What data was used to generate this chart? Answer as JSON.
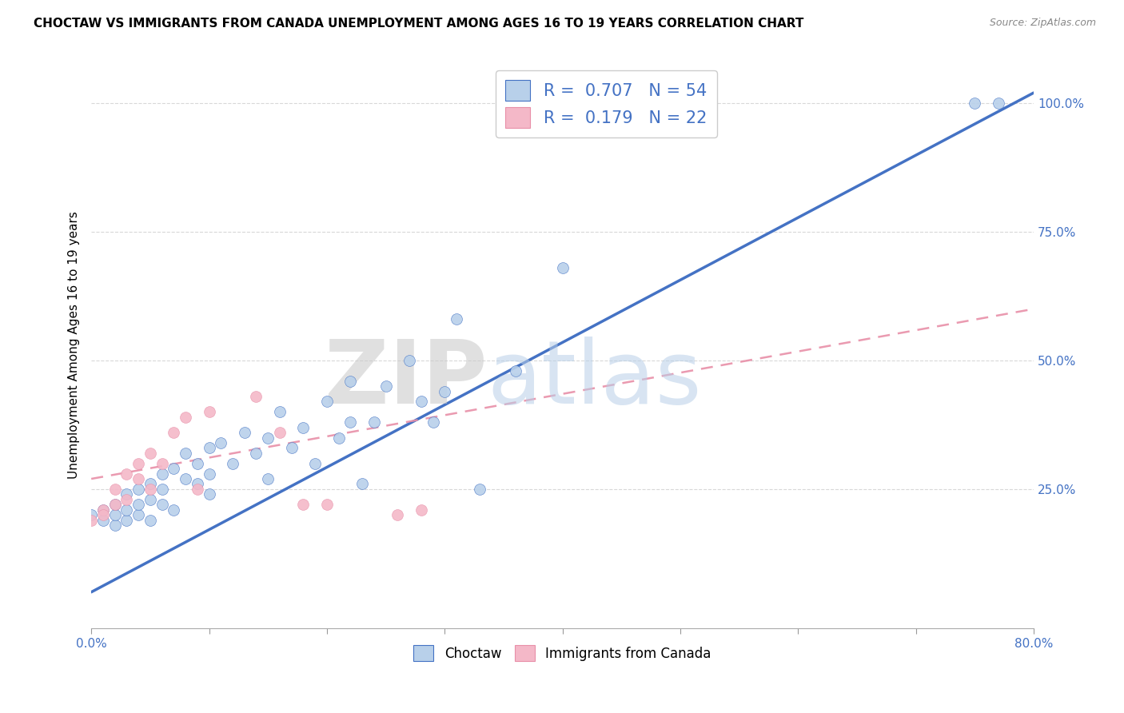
{
  "title": "CHOCTAW VS IMMIGRANTS FROM CANADA UNEMPLOYMENT AMONG AGES 16 TO 19 YEARS CORRELATION CHART",
  "source": "Source: ZipAtlas.com",
  "ylabel": "Unemployment Among Ages 16 to 19 years",
  "xlim": [
    0.0,
    0.8
  ],
  "ylim": [
    -0.02,
    1.08
  ],
  "xticks": [
    0.0,
    0.1,
    0.2,
    0.3,
    0.4,
    0.5,
    0.6,
    0.7,
    0.8
  ],
  "xticklabels": [
    "0.0%",
    "",
    "",
    "",
    "",
    "",
    "",
    "",
    "80.0%"
  ],
  "ytick_positions": [
    0.25,
    0.5,
    0.75,
    1.0
  ],
  "ytick_labels": [
    "25.0%",
    "50.0%",
    "75.0%",
    "100.0%"
  ],
  "choctaw_color": "#b8d0ea",
  "canada_color": "#f4b8c8",
  "choctaw_line_color": "#4472c4",
  "canada_line_color": "#e88fa8",
  "R_choctaw": 0.707,
  "N_choctaw": 54,
  "R_canada": 0.179,
  "N_canada": 22,
  "legend_label_choctaw": "Choctaw",
  "legend_label_canada": "Immigrants from Canada",
  "text_color": "#4472c4",
  "watermark_zip": "ZIP",
  "watermark_atlas": "atlas",
  "background_color": "#ffffff",
  "grid_color": "#d8d8d8",
  "choctaw_line_x0": 0.0,
  "choctaw_line_y0": 0.05,
  "choctaw_line_x1": 0.8,
  "choctaw_line_y1": 1.02,
  "canada_line_x0": 0.0,
  "canada_line_y0": 0.27,
  "canada_line_x1": 0.8,
  "canada_line_y1": 0.6,
  "choctaw_x": [
    0.0,
    0.01,
    0.01,
    0.02,
    0.02,
    0.02,
    0.03,
    0.03,
    0.03,
    0.04,
    0.04,
    0.04,
    0.05,
    0.05,
    0.05,
    0.06,
    0.06,
    0.06,
    0.07,
    0.07,
    0.08,
    0.08,
    0.09,
    0.09,
    0.1,
    0.1,
    0.1,
    0.11,
    0.12,
    0.13,
    0.14,
    0.15,
    0.15,
    0.16,
    0.17,
    0.18,
    0.19,
    0.2,
    0.21,
    0.22,
    0.22,
    0.23,
    0.24,
    0.25,
    0.27,
    0.28,
    0.29,
    0.3,
    0.31,
    0.33,
    0.36,
    0.4,
    0.75,
    0.77
  ],
  "choctaw_y": [
    0.2,
    0.19,
    0.21,
    0.18,
    0.2,
    0.22,
    0.19,
    0.21,
    0.24,
    0.2,
    0.22,
    0.25,
    0.19,
    0.23,
    0.26,
    0.22,
    0.25,
    0.28,
    0.21,
    0.29,
    0.27,
    0.32,
    0.26,
    0.3,
    0.24,
    0.28,
    0.33,
    0.34,
    0.3,
    0.36,
    0.32,
    0.27,
    0.35,
    0.4,
    0.33,
    0.37,
    0.3,
    0.42,
    0.35,
    0.38,
    0.46,
    0.26,
    0.38,
    0.45,
    0.5,
    0.42,
    0.38,
    0.44,
    0.58,
    0.25,
    0.48,
    0.68,
    1.0,
    1.0
  ],
  "canada_x": [
    0.0,
    0.01,
    0.01,
    0.02,
    0.02,
    0.03,
    0.03,
    0.04,
    0.04,
    0.05,
    0.05,
    0.06,
    0.07,
    0.08,
    0.09,
    0.1,
    0.14,
    0.16,
    0.18,
    0.2,
    0.26,
    0.28
  ],
  "canada_y": [
    0.19,
    0.21,
    0.2,
    0.22,
    0.25,
    0.23,
    0.28,
    0.27,
    0.3,
    0.25,
    0.32,
    0.3,
    0.36,
    0.39,
    0.25,
    0.4,
    0.43,
    0.36,
    0.22,
    0.22,
    0.2,
    0.21
  ]
}
